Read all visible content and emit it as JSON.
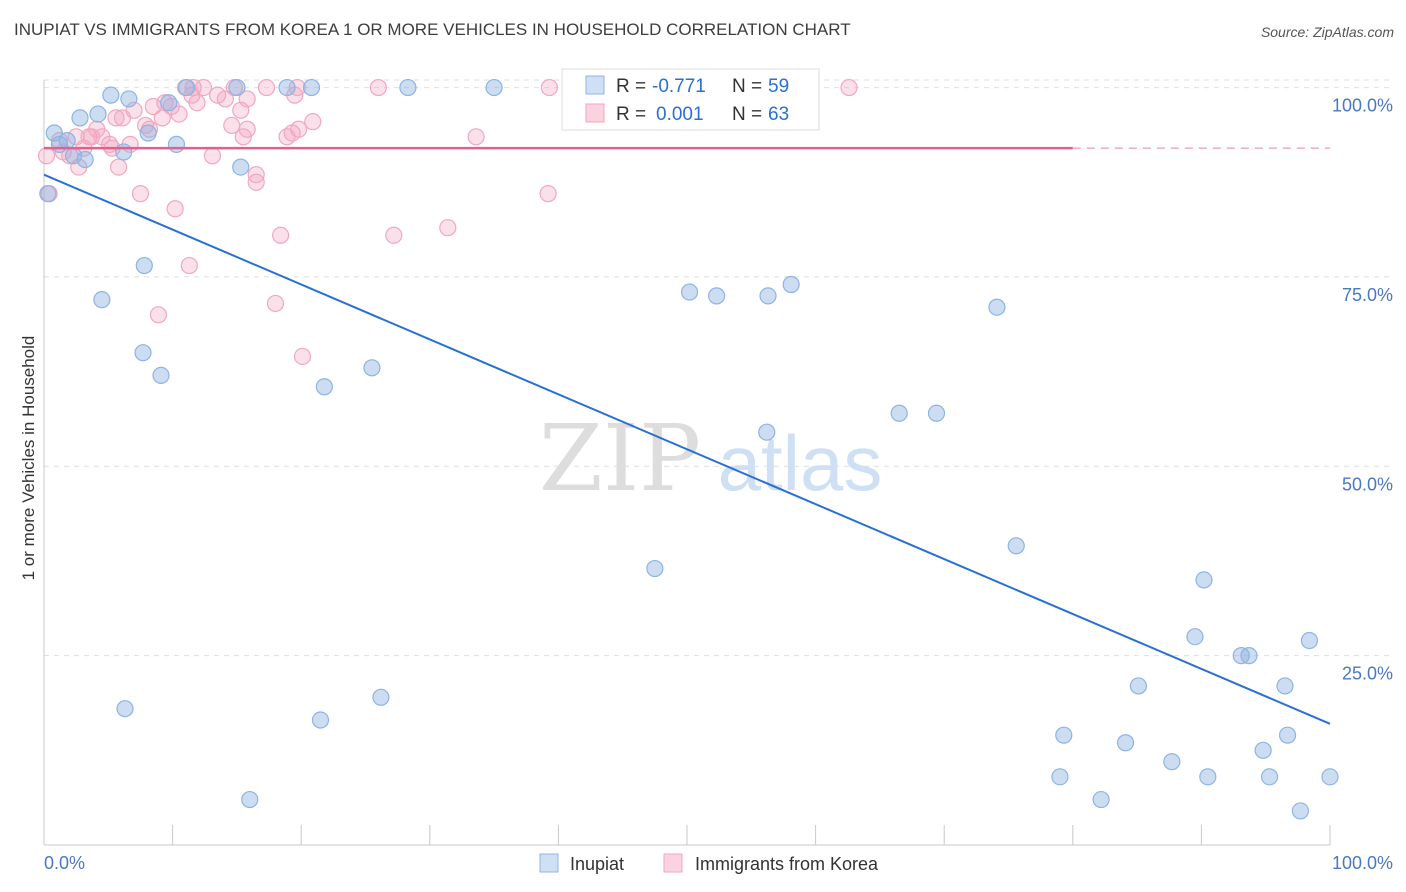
{
  "title": "INUPIAT VS IMMIGRANTS FROM KOREA 1 OR MORE VEHICLES IN HOUSEHOLD CORRELATION CHART",
  "source": "Source: ZipAtlas.com",
  "watermark": {
    "zip": "ZIP",
    "atlas": "atlas"
  },
  "colors": {
    "inupiat": "#8db4e2",
    "inupiat_line": "#2a6fd6",
    "korea": "#f2a7bf",
    "korea_line": "#e45f8c",
    "tick_label": "#4a78c2"
  },
  "legend": {
    "rows": [
      {
        "r_label": "R =",
        "r_value": "-0.771",
        "n_label": "N =",
        "n_value": "59"
      },
      {
        "r_label": "R =",
        "r_value": "0.001",
        "n_label": "N =",
        "n_value": "63"
      }
    ]
  },
  "chart_data": {
    "type": "scatter",
    "ylabel": "1 or more Vehicles in Household",
    "x_tick_labels": {
      "left": "0.0%",
      "right": "100.0%"
    },
    "y_tick_labels": [
      "25.0%",
      "50.0%",
      "75.0%",
      "100.0%"
    ],
    "xlim": [
      0,
      100
    ],
    "ylim": [
      0,
      101
    ],
    "grid": true,
    "series": [
      {
        "name": "Inupiat",
        "trend": {
          "x1": 0,
          "y1": 88.5,
          "x2": 100,
          "y2": 16
        },
        "points": [
          [
            0.3,
            86
          ],
          [
            0.8,
            94
          ],
          [
            1.2,
            92.5
          ],
          [
            1.8,
            93
          ],
          [
            2.3,
            91
          ],
          [
            2.8,
            96
          ],
          [
            3.2,
            90.5
          ],
          [
            4.2,
            96.5
          ],
          [
            5.2,
            99
          ],
          [
            6.2,
            91.5
          ],
          [
            6.6,
            98.5
          ],
          [
            8.1,
            94
          ],
          [
            9.7,
            98
          ],
          [
            10.3,
            92.5
          ],
          [
            11.1,
            100
          ],
          [
            15,
            100
          ],
          [
            18.9,
            100
          ],
          [
            20.8,
            100
          ],
          [
            28.3,
            100
          ],
          [
            35,
            100
          ],
          [
            4.5,
            72
          ],
          [
            7.8,
            76.5
          ],
          [
            7.7,
            65
          ],
          [
            9.1,
            62
          ],
          [
            15.3,
            89.5
          ],
          [
            21.8,
            60.5
          ],
          [
            25.5,
            63
          ],
          [
            6.3,
            18
          ],
          [
            16,
            6
          ],
          [
            21.5,
            16.5
          ],
          [
            26.2,
            19.5
          ],
          [
            47.5,
            36.5
          ],
          [
            50.2,
            73
          ],
          [
            52.3,
            72.5
          ],
          [
            56.2,
            54.5
          ],
          [
            56.3,
            72.5
          ],
          [
            58.1,
            74
          ],
          [
            66.5,
            57
          ],
          [
            69.4,
            57
          ],
          [
            74.1,
            71
          ],
          [
            75.6,
            39.5
          ],
          [
            79,
            9
          ],
          [
            79.3,
            14.5
          ],
          [
            82.2,
            6
          ],
          [
            84.1,
            13.5
          ],
          [
            85.1,
            21
          ],
          [
            87.7,
            11
          ],
          [
            89.5,
            27.5
          ],
          [
            90.2,
            35
          ],
          [
            90.5,
            9
          ],
          [
            93.1,
            25
          ],
          [
            93.7,
            25
          ],
          [
            94.8,
            12.5
          ],
          [
            95.3,
            9
          ],
          [
            96.5,
            21
          ],
          [
            96.7,
            14.5
          ],
          [
            97.7,
            4.5
          ],
          [
            98.4,
            27
          ],
          [
            100,
            9
          ]
        ]
      },
      {
        "name": "Immigrants from Korea",
        "trend": {
          "x1": 0,
          "y1": 92,
          "x2": 80,
          "y2": 92
        },
        "dashed_extension": {
          "x1": 80,
          "x2": 100,
          "y": 92
        },
        "points": [
          [
            0.2,
            91
          ],
          [
            0.4,
            86
          ],
          [
            1.2,
            93
          ],
          [
            1.5,
            91.5
          ],
          [
            2,
            91
          ],
          [
            2.5,
            93.5
          ],
          [
            2.7,
            89.5
          ],
          [
            3.1,
            92
          ],
          [
            3.5,
            93.5
          ],
          [
            3.7,
            93.5
          ],
          [
            4.1,
            94.5
          ],
          [
            4.5,
            93.5
          ],
          [
            5.1,
            92.5
          ],
          [
            5.3,
            92
          ],
          [
            5.6,
            96
          ],
          [
            5.8,
            89.5
          ],
          [
            6.1,
            96
          ],
          [
            6.7,
            92.5
          ],
          [
            7,
            97
          ],
          [
            7.5,
            86
          ],
          [
            7.9,
            95
          ],
          [
            8.2,
            94.5
          ],
          [
            8.5,
            97.5
          ],
          [
            8.9,
            70
          ],
          [
            9.2,
            96
          ],
          [
            9.4,
            98
          ],
          [
            9.9,
            97.5
          ],
          [
            10.2,
            84
          ],
          [
            10.5,
            96.5
          ],
          [
            11,
            100
          ],
          [
            11.3,
            76.5
          ],
          [
            11.5,
            99
          ],
          [
            11.6,
            100
          ],
          [
            11.9,
            98
          ],
          [
            12.4,
            100
          ],
          [
            13.1,
            91
          ],
          [
            13.5,
            99
          ],
          [
            14.1,
            98.5
          ],
          [
            14.6,
            95
          ],
          [
            14.8,
            100
          ],
          [
            15.3,
            97
          ],
          [
            15.5,
            93.5
          ],
          [
            15.8,
            98.5
          ],
          [
            15.8,
            94.5
          ],
          [
            16.5,
            87.5
          ],
          [
            16.5,
            88.5
          ],
          [
            17.3,
            100
          ],
          [
            18,
            71.5
          ],
          [
            18.4,
            80.5
          ],
          [
            18.9,
            93.5
          ],
          [
            19.3,
            94
          ],
          [
            19.5,
            99
          ],
          [
            19.7,
            100
          ],
          [
            19.8,
            94.5
          ],
          [
            20.1,
            64.5
          ],
          [
            20.9,
            95.5
          ],
          [
            26,
            100
          ],
          [
            27.2,
            80.5
          ],
          [
            31.4,
            81.5
          ],
          [
            33.6,
            93.5
          ],
          [
            39.2,
            86
          ],
          [
            39.3,
            100
          ],
          [
            62.6,
            100
          ]
        ]
      }
    ]
  },
  "bottom_legend": {
    "items": [
      {
        "label": "Inupiat"
      },
      {
        "label": "Immigrants from Korea"
      }
    ]
  }
}
